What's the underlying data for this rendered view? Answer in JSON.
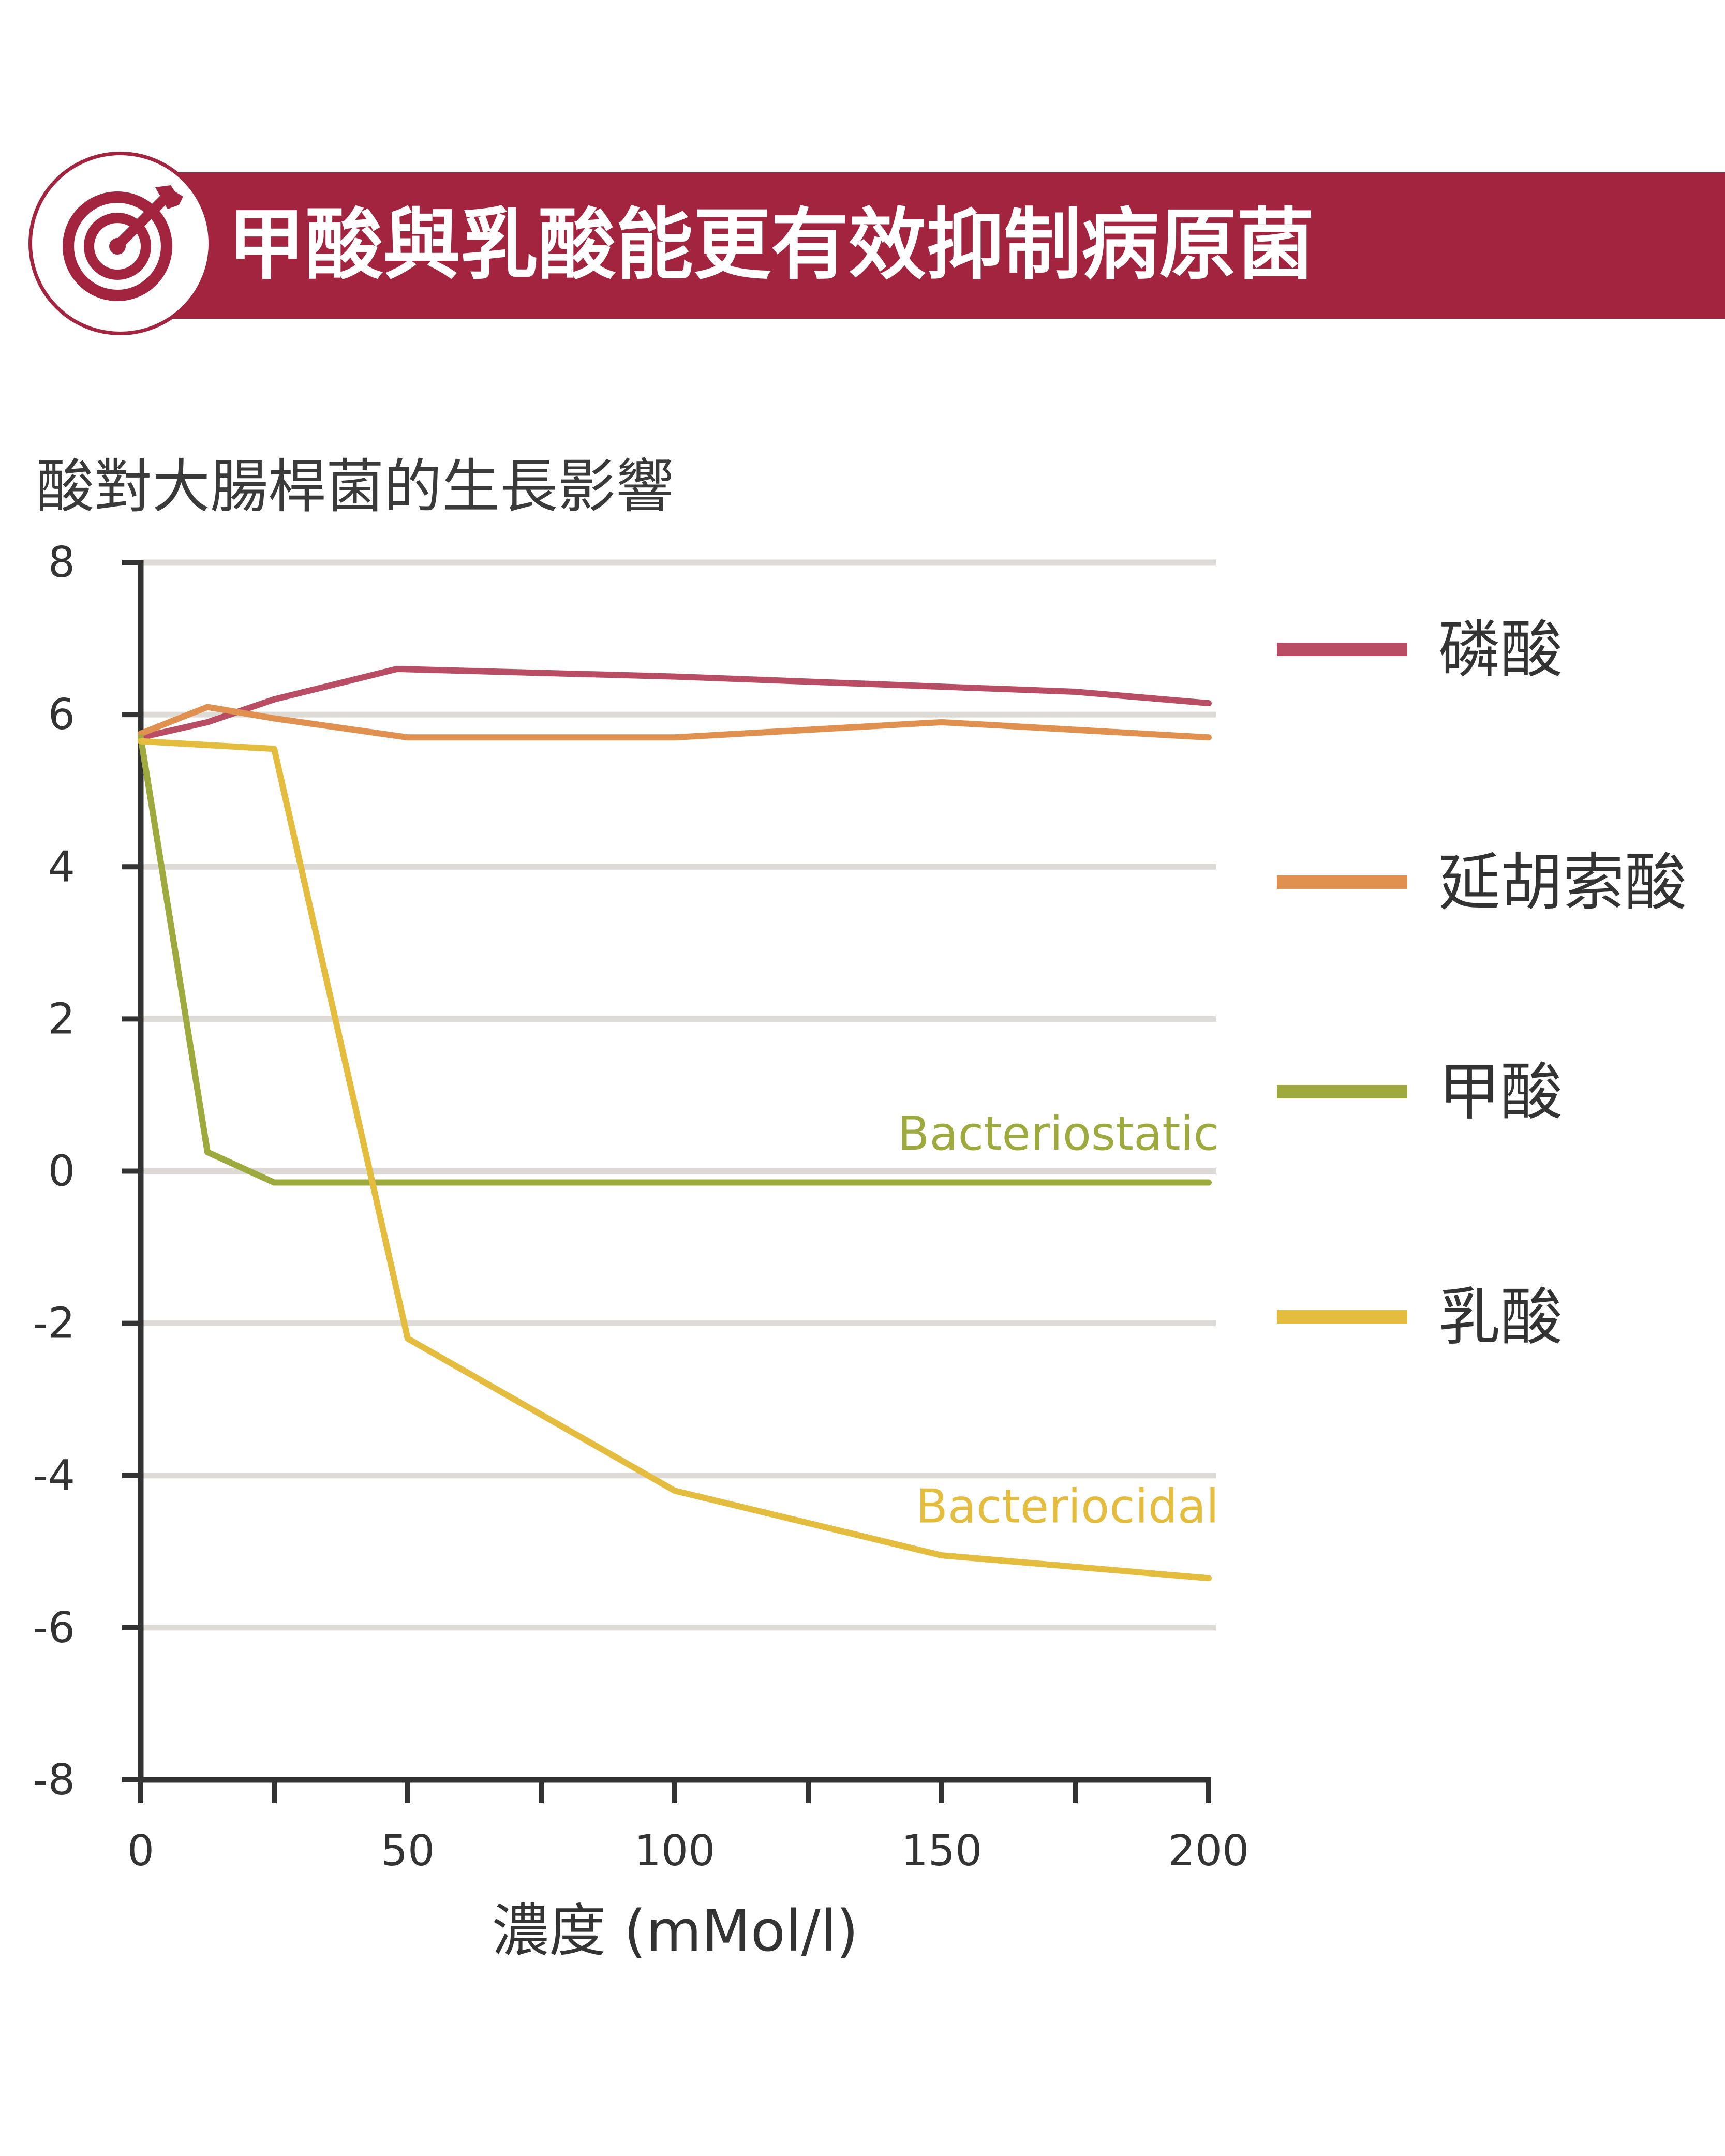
{
  "header": {
    "title": "甲酸與乳酸能更有效抑制病原菌",
    "icon": "target-icon",
    "color": "#a2243e"
  },
  "chart_data": {
    "type": "line",
    "title": "酸對大腸桿菌的生長影響",
    "xlabel": "濃度 (mMol/l)",
    "ylabel": "",
    "xlim": [
      0,
      200
    ],
    "ylim": [
      -8,
      8
    ],
    "x_ticks": [
      0,
      50,
      100,
      150,
      200
    ],
    "y_ticks": [
      8,
      6,
      4,
      2,
      0,
      -2,
      -4,
      -6,
      -8
    ],
    "grid": true,
    "legend_position": "right",
    "series": [
      {
        "name": "磷酸",
        "color": "#b84d63",
        "x": [
          0,
          12.5,
          25,
          48,
          100,
          175,
          200
        ],
        "y": [
          5.7,
          5.9,
          6.2,
          6.6,
          6.5,
          6.3,
          6.15
        ]
      },
      {
        "name": "延胡索酸",
        "color": "#e0914f",
        "x": [
          0,
          12.5,
          25,
          50,
          100,
          150,
          200
        ],
        "y": [
          5.75,
          6.1,
          5.95,
          5.7,
          5.7,
          5.9,
          5.7
        ]
      },
      {
        "name": "甲酸",
        "color": "#9ea93e",
        "x": [
          0,
          12.5,
          25,
          50,
          100,
          150,
          200
        ],
        "y": [
          5.7,
          0.25,
          -0.15,
          -0.15,
          -0.15,
          -0.15,
          -0.15
        ]
      },
      {
        "name": "乳酸",
        "color": "#e4bd3f",
        "x": [
          0,
          12.5,
          25,
          50,
          100,
          150,
          200
        ],
        "y": [
          5.65,
          5.6,
          5.55,
          -2.2,
          -4.2,
          -5.05,
          -5.35
        ]
      }
    ],
    "annotations": [
      {
        "text": "Bacteriostatic",
        "color": "#9ea93e",
        "x": 200,
        "y": 0.5
      },
      {
        "text": "Bacteriocidal",
        "color": "#e4bd3f",
        "x": 200,
        "y": -4.4
      }
    ]
  }
}
